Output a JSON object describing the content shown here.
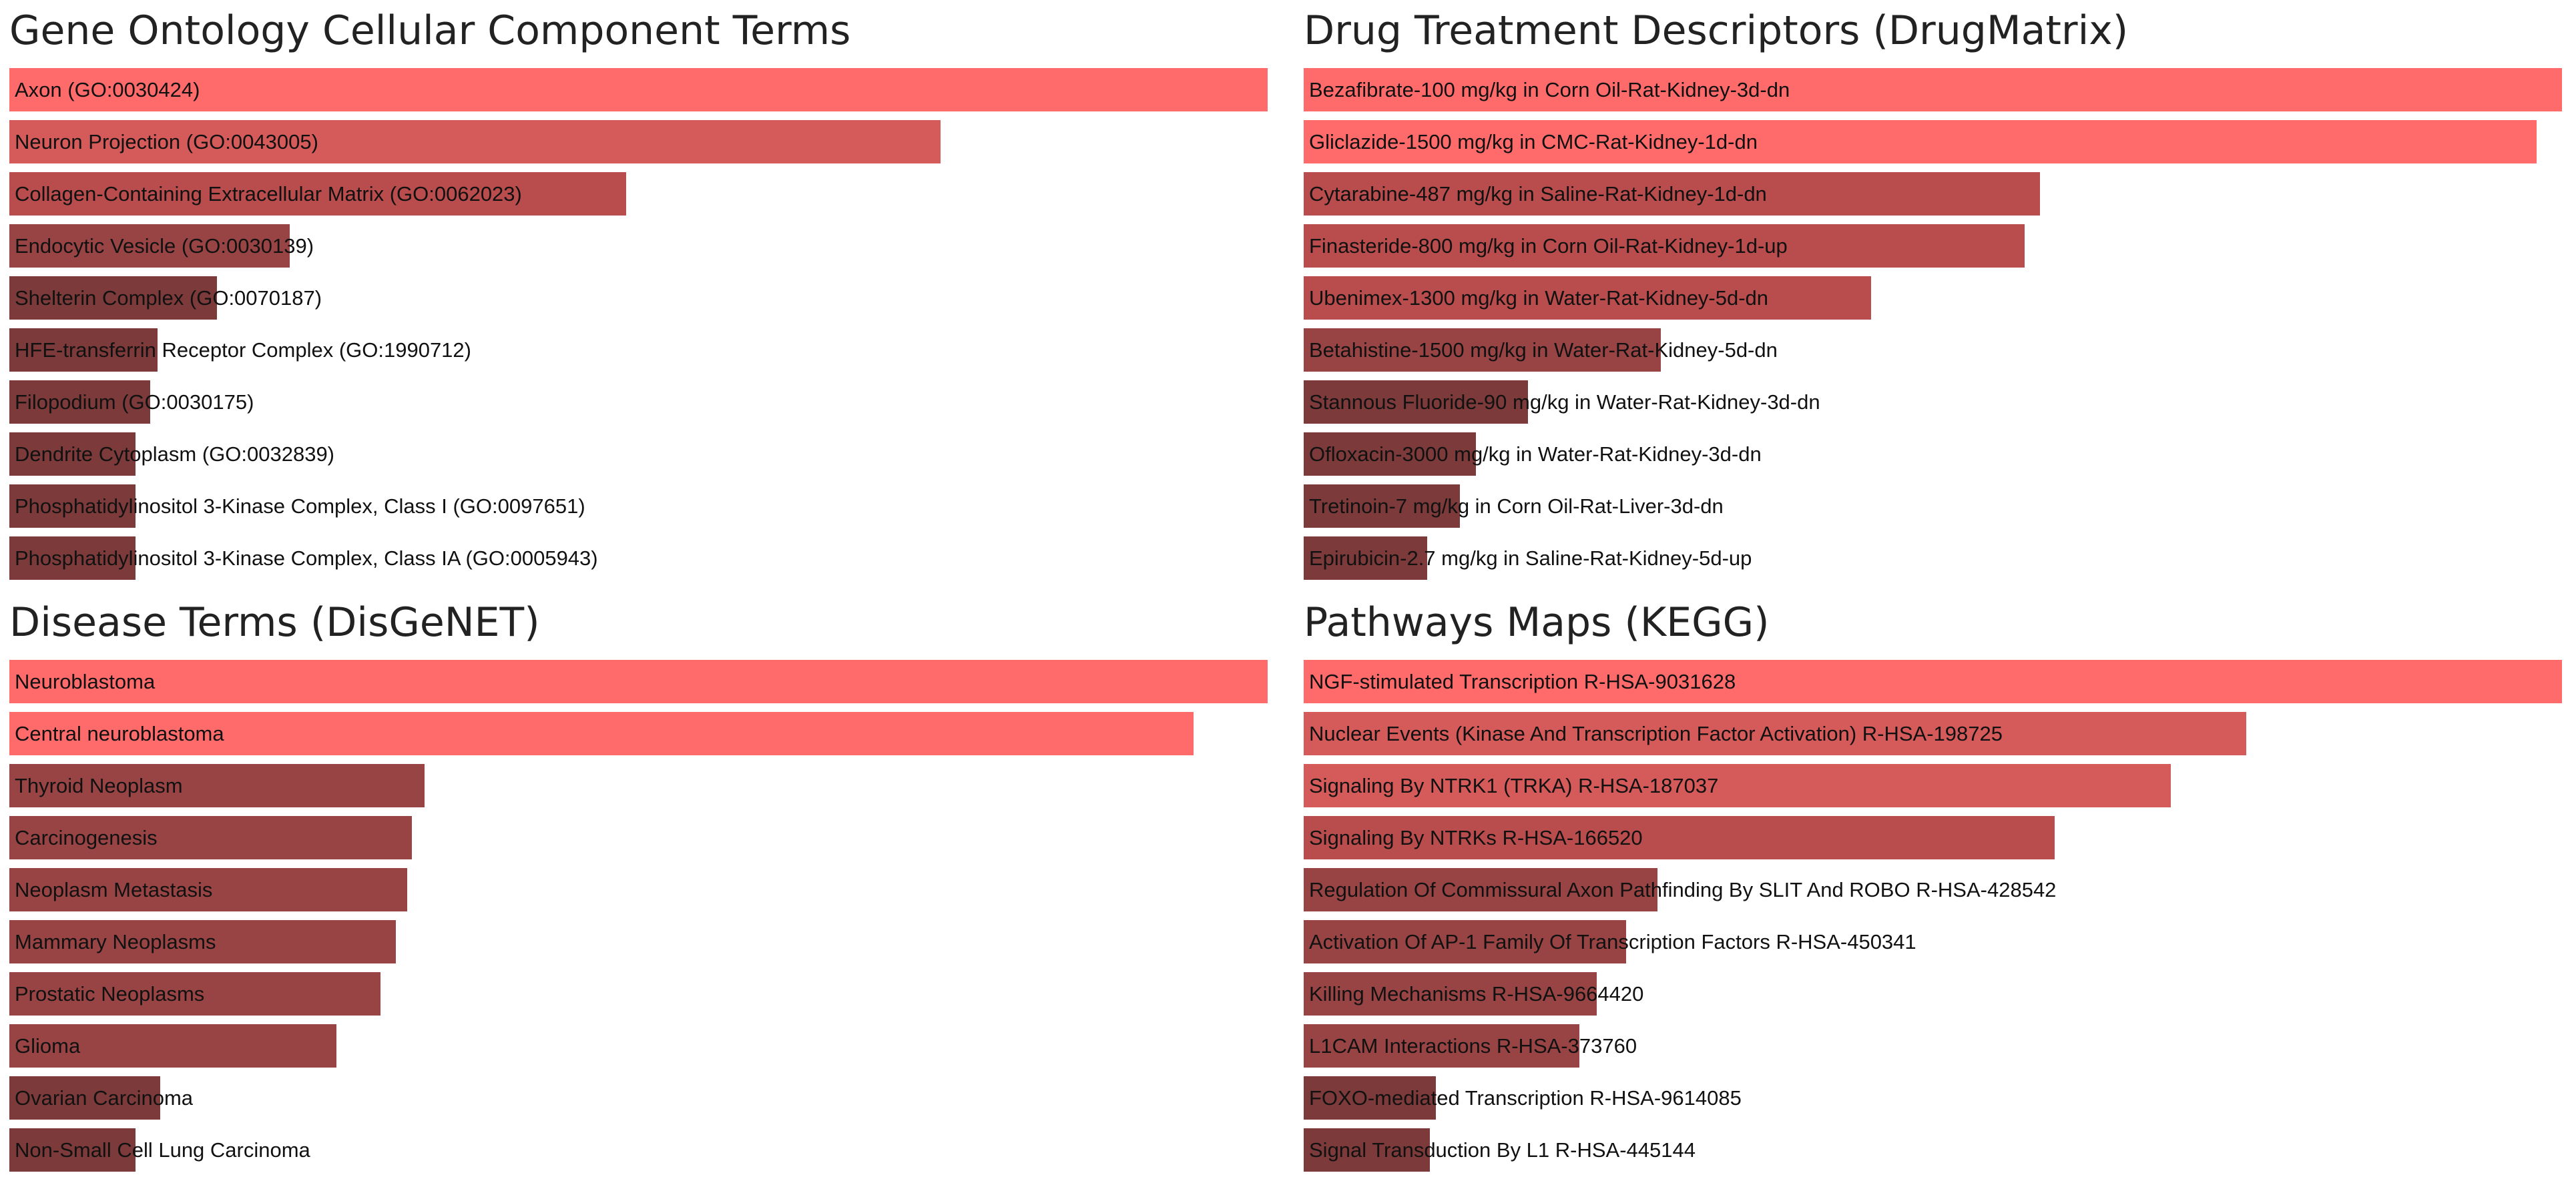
{
  "chart_data": [
    {
      "type": "bar",
      "orientation": "horizontal",
      "title": "Gene Ontology Cellular Component Terms",
      "categories": [
        "Axon (GO:0030424)",
        "Neuron Projection (GO:0043005)",
        "Collagen-Containing Extracellular Matrix (GO:0062023)",
        "Endocytic Vesicle (GO:0030139)",
        "Shelterin Complex (GO:0070187)",
        "HFE-transferrin Receptor Complex (GO:1990712)",
        "Filopodium (GO:0030175)",
        "Dendrite Cytoplasm (GO:0032839)",
        "Phosphatidylinositol 3-Kinase Complex, Class I (GO:0097651)",
        "Phosphatidylinositol 3-Kinase Complex, Class IA (GO:0005943)"
      ],
      "values": [
        1.0,
        0.74,
        0.49,
        0.223,
        0.165,
        0.118,
        0.112,
        0.1,
        0.1,
        0.1
      ],
      "significant": [
        true,
        false,
        false,
        false,
        false,
        false,
        false,
        false,
        false,
        false
      ],
      "xlim": [
        0,
        1
      ]
    },
    {
      "type": "bar",
      "orientation": "horizontal",
      "title": "Drug Treatment Descriptors (DrugMatrix)",
      "categories": [
        "Bezafibrate-100 mg/kg in Corn Oil-Rat-Kidney-3d-dn",
        "Gliclazide-1500 mg/kg in CMC-Rat-Kidney-1d-dn",
        "Cytarabine-487 mg/kg in Saline-Rat-Kidney-1d-dn",
        "Finasteride-800 mg/kg in Corn Oil-Rat-Kidney-1d-up",
        "Ubenimex-1300 mg/kg in Water-Rat-Kidney-5d-dn",
        "Betahistine-1500 mg/kg in Water-Rat-Kidney-5d-dn",
        "Stannous Fluoride-90 mg/kg in Water-Rat-Kidney-3d-dn",
        "Ofloxacin-3000 mg/kg in Water-Rat-Kidney-3d-dn",
        "Tretinoin-7 mg/kg in Corn Oil-Rat-Liver-3d-dn",
        "Epirubicin-2.7 mg/kg in Saline-Rat-Kidney-5d-up"
      ],
      "values": [
        1.0,
        0.98,
        0.585,
        0.573,
        0.451,
        0.284,
        0.178,
        0.137,
        0.124,
        0.098
      ],
      "significant": [
        true,
        true,
        false,
        false,
        false,
        false,
        false,
        false,
        false,
        false
      ],
      "xlim": [
        0,
        1
      ]
    },
    {
      "type": "bar",
      "orientation": "horizontal",
      "title": "Disease Terms (DisGeNET)",
      "categories": [
        "Neuroblastoma",
        "Central neuroblastoma",
        "Thyroid Neoplasm",
        "Carcinogenesis",
        "Neoplasm Metastasis",
        "Mammary Neoplasms",
        "Prostatic Neoplasms",
        "Glioma",
        "Ovarian Carcinoma",
        "Non-Small Cell Lung Carcinoma"
      ],
      "values": [
        1.0,
        0.941,
        0.33,
        0.32,
        0.316,
        0.307,
        0.295,
        0.26,
        0.12,
        0.1
      ],
      "significant": [
        true,
        true,
        false,
        false,
        false,
        false,
        false,
        false,
        false,
        false
      ],
      "xlim": [
        0,
        1
      ]
    },
    {
      "type": "bar",
      "orientation": "horizontal",
      "title": "Pathways Maps (KEGG)",
      "categories": [
        "NGF-stimulated Transcription R-HSA-9031628",
        "Nuclear Events (Kinase And Transcription Factor Activation) R-HSA-198725",
        "Signaling By NTRK1 (TRKA) R-HSA-187037",
        "Signaling By NTRKs R-HSA-166520",
        "Regulation Of Commissural Axon Pathfinding By SLIT And ROBO R-HSA-428542",
        "Activation Of AP-1 Family Of Transcription Factors R-HSA-450341",
        "Killing Mechanisms R-HSA-9664420",
        "L1CAM Interactions R-HSA-373760",
        "FOXO-mediated Transcription R-HSA-9614085",
        "Signal Transduction By L1 R-HSA-445144"
      ],
      "values": [
        1.0,
        0.749,
        0.689,
        0.597,
        0.281,
        0.256,
        0.233,
        0.219,
        0.105,
        0.1
      ],
      "significant": [
        true,
        false,
        false,
        false,
        false,
        false,
        false,
        false,
        false,
        false
      ],
      "xlim": [
        0,
        1
      ]
    }
  ],
  "colors": {
    "significant": "#ff6b6b",
    "high": "#d55a5a",
    "mid": "#b94c4c",
    "low": "#994444",
    "lowest": "#7d3a3a"
  }
}
